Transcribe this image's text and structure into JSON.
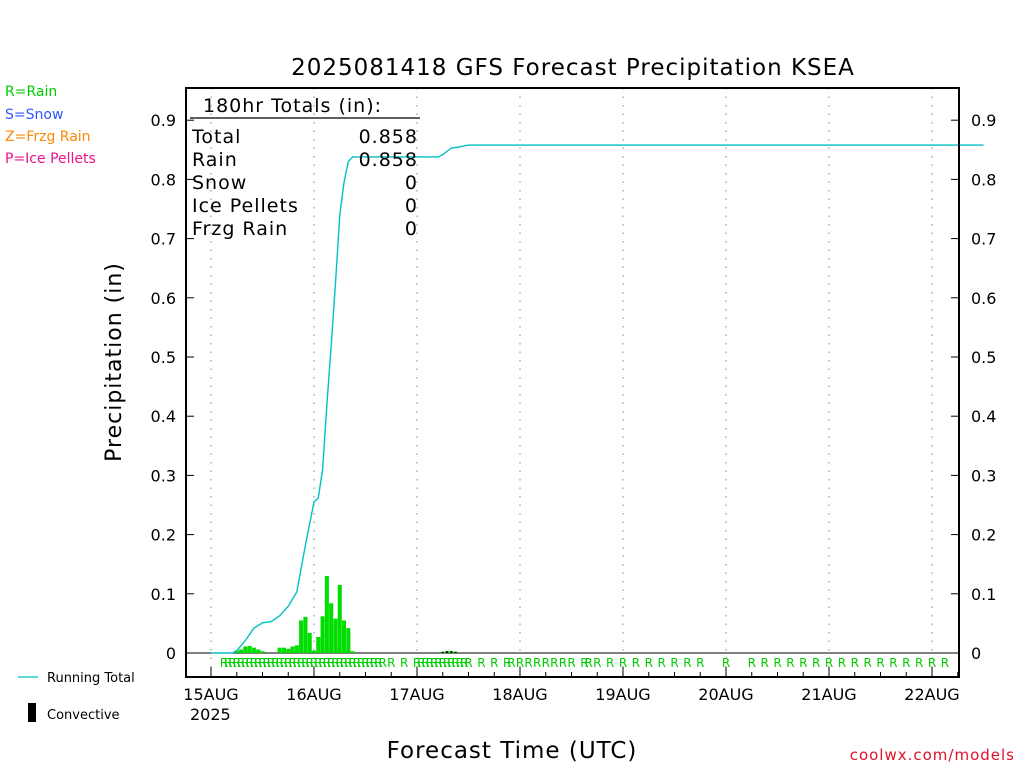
{
  "chart_data": {
    "type": "bar",
    "title": "2025081418 GFS Forecast Precipitation KSEA",
    "ylabel": "Precipitation (in)",
    "xlabel": "Forecast Time (UTC)",
    "ylim": [
      0,
      0.9
    ],
    "y_ticks": [
      "0",
      "0.1",
      "0.2",
      "0.3",
      "0.4",
      "0.5",
      "0.6",
      "0.7",
      "0.8",
      "0.9"
    ],
    "x_ticks": [
      "15AUG",
      "16AUG",
      "17AUG",
      "18AUG",
      "19AUG",
      "20AUG",
      "21AUG",
      "22AUG"
    ],
    "x_tick_sub": "2025",
    "x_range_hours": [
      0,
      180
    ],
    "grid": "vertical dotted at day boundaries",
    "precip_type_legend": [
      {
        "label": "R=Rain",
        "color": "#00cc00"
      },
      {
        "label": "S=Snow",
        "color": "#3355ff"
      },
      {
        "label": "Z=Frzg Rain",
        "color": "#ff8800"
      },
      {
        "label": "P=Ice Pellets",
        "color": "#ee1188"
      }
    ],
    "legend_bottom": [
      {
        "label": "Running Total",
        "color": "#00c0c8"
      },
      {
        "label": "Convective",
        "color": "#000000"
      }
    ],
    "totals_box": {
      "header": "180hr Totals (in):",
      "rows": [
        {
          "name": "Total",
          "value": "0.858"
        },
        {
          "name": "Rain",
          "value": "0.858"
        },
        {
          "name": "Snow",
          "value": "0"
        },
        {
          "name": "Ice Pellets",
          "value": "0"
        },
        {
          "name": "Frzg Rain",
          "value": "0"
        }
      ]
    },
    "bar_color": "#00dd00",
    "line_color": "#00c0c8",
    "bars": [
      {
        "x": 6,
        "y": 0.004
      },
      {
        "x": 7,
        "y": 0.006
      },
      {
        "x": 8,
        "y": 0.011
      },
      {
        "x": 9,
        "y": 0.012
      },
      {
        "x": 10,
        "y": 0.009
      },
      {
        "x": 11,
        "y": 0.006
      },
      {
        "x": 12,
        "y": 0.003
      },
      {
        "x": 16,
        "y": 0.009
      },
      {
        "x": 17,
        "y": 0.009
      },
      {
        "x": 18,
        "y": 0.007
      },
      {
        "x": 19,
        "y": 0.011
      },
      {
        "x": 20,
        "y": 0.013
      },
      {
        "x": 21,
        "y": 0.055
      },
      {
        "x": 22,
        "y": 0.061
      },
      {
        "x": 23,
        "y": 0.034
      },
      {
        "x": 24,
        "y": 0.004
      },
      {
        "x": 25,
        "y": 0.027
      },
      {
        "x": 26,
        "y": 0.062
      },
      {
        "x": 27,
        "y": 0.13
      },
      {
        "x": 28,
        "y": 0.084
      },
      {
        "x": 29,
        "y": 0.058
      },
      {
        "x": 30,
        "y": 0.115
      },
      {
        "x": 31,
        "y": 0.055
      },
      {
        "x": 32,
        "y": 0.042
      },
      {
        "x": 33,
        "y": 0.003
      },
      {
        "x": 54,
        "y": 0.002
      },
      {
        "x": 55,
        "y": 0.003
      },
      {
        "x": 56,
        "y": 0.003
      },
      {
        "x": 57,
        "y": 0.002
      }
    ],
    "running_total": [
      {
        "x": 0,
        "y": 0
      },
      {
        "x": 5,
        "y": 0
      },
      {
        "x": 6,
        "y": 0.004
      },
      {
        "x": 8,
        "y": 0.021
      },
      {
        "x": 10,
        "y": 0.042
      },
      {
        "x": 12,
        "y": 0.051
      },
      {
        "x": 14,
        "y": 0.053
      },
      {
        "x": 16,
        "y": 0.063
      },
      {
        "x": 18,
        "y": 0.079
      },
      {
        "x": 20,
        "y": 0.103
      },
      {
        "x": 22,
        "y": 0.182
      },
      {
        "x": 24,
        "y": 0.255
      },
      {
        "x": 25,
        "y": 0.262
      },
      {
        "x": 26,
        "y": 0.31
      },
      {
        "x": 27,
        "y": 0.42
      },
      {
        "x": 28,
        "y": 0.52
      },
      {
        "x": 29,
        "y": 0.625
      },
      {
        "x": 30,
        "y": 0.74
      },
      {
        "x": 31,
        "y": 0.795
      },
      {
        "x": 32,
        "y": 0.83
      },
      {
        "x": 33,
        "y": 0.838
      },
      {
        "x": 53,
        "y": 0.838
      },
      {
        "x": 54,
        "y": 0.842
      },
      {
        "x": 56,
        "y": 0.853
      },
      {
        "x": 58,
        "y": 0.855
      },
      {
        "x": 60,
        "y": 0.858
      },
      {
        "x": 180,
        "y": 0.858
      }
    ],
    "rain_marker_hours": [
      3,
      4,
      5,
      6,
      7,
      8,
      9,
      10,
      11,
      12,
      13,
      14,
      15,
      16,
      17,
      18,
      19,
      20,
      21,
      22,
      23,
      24,
      25,
      26,
      27,
      28,
      29,
      30,
      31,
      32,
      33,
      34,
      35,
      36,
      37,
      38,
      39,
      40,
      42,
      45,
      48,
      49,
      50,
      51,
      52,
      53,
      54,
      55,
      56,
      57,
      58,
      59,
      60,
      63,
      66,
      69,
      70,
      72,
      74,
      76,
      78,
      80,
      82,
      84,
      87,
      88,
      90,
      93,
      96,
      99,
      102,
      105,
      108,
      111,
      114,
      120,
      126,
      129,
      132,
      135,
      138,
      141,
      144,
      147,
      150,
      153,
      156,
      159,
      162,
      165,
      168,
      171,
      174,
      177,
      180
    ],
    "rain_marker_label": "R"
  },
  "footer_credit": "coolwx.com/models"
}
